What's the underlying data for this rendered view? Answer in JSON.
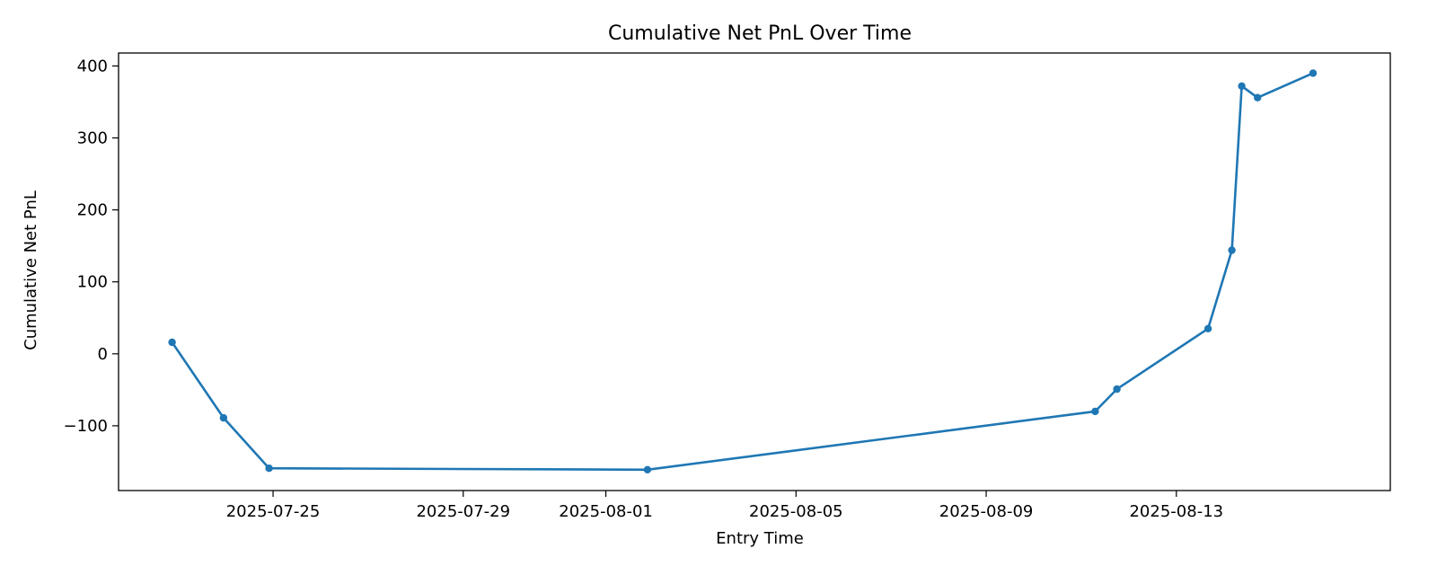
{
  "chart_data": {
    "type": "line",
    "title": "Cumulative Net PnL Over Time",
    "xlabel": "Entry Time",
    "ylabel": "Cumulative Net PnL",
    "grid": false,
    "legend": "none",
    "color": "#1f77b4",
    "xlim": [
      "2025-07-21T18:00",
      "2025-08-17T12:00"
    ],
    "ylim": [
      -190,
      418
    ],
    "xticks": [
      "2025-07-25",
      "2025-07-29",
      "2025-08-01",
      "2025-08-05",
      "2025-08-09",
      "2025-08-13"
    ],
    "yticks": [
      -100,
      0,
      100,
      200,
      300,
      400
    ],
    "ytick_labels": [
      "−100",
      "0",
      "100",
      "200",
      "300",
      "400"
    ],
    "series": [
      {
        "x": [
          "2025-07-22T21:00",
          "2025-07-23T23:00",
          "2025-07-24T22:00",
          "2025-08-01T21:00",
          "2025-08-11T07:00",
          "2025-08-11T18:00",
          "2025-08-13T16:00",
          "2025-08-14T04:00",
          "2025-08-14T09:00",
          "2025-08-14T17:00",
          "2025-08-15T21:00"
        ],
        "values": [
          16,
          -89,
          -159,
          -161,
          -80,
          -49,
          35,
          144,
          372,
          356,
          390
        ]
      }
    ]
  }
}
